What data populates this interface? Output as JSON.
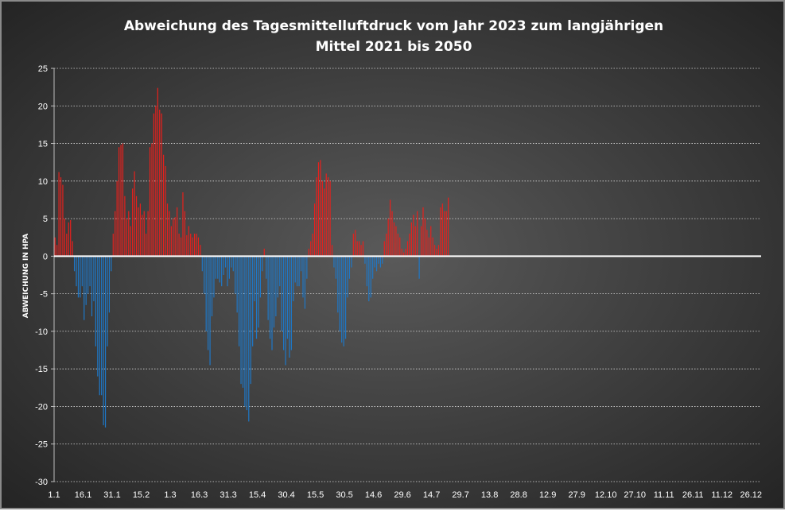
{
  "chart_data": {
    "type": "bar",
    "title_lines": [
      "Abweichung  des Tagesmittelluftdruck  vom Jahr 2023 zum langjährigen",
      "Mittel  2021 bis 2050"
    ],
    "ylabel": "ABWEICHUNG IN HPA",
    "xlabel": "",
    "ylim": [
      -30,
      25
    ],
    "y_ticks": [
      25,
      20,
      15,
      10,
      5,
      0,
      -5,
      -10,
      -15,
      -20,
      -25,
      -30
    ],
    "x_tick_labels": [
      "1.1",
      "16.1",
      "31.1",
      "15.2",
      "1.3",
      "16.3",
      "31.3",
      "15.4",
      "30.4",
      "15.5",
      "30.5",
      "14.6",
      "29.6",
      "14.7",
      "29.7",
      "13.8",
      "28.8",
      "12.9",
      "27.9",
      "12.10",
      "27.10",
      "11.11",
      "26.11",
      "11.12",
      "26.12"
    ],
    "days_in_year": 365,
    "gridlines": true,
    "positive_color": "#e8201c",
    "negative_color": "#1e78c8",
    "zero_line_color": "#ffffff",
    "values": [
      2.5,
      1.5,
      11.2,
      10.5,
      9.5,
      5.0,
      3.0,
      4.5,
      4.8,
      2.0,
      -2.0,
      -4.0,
      -5.5,
      -5.5,
      -4.0,
      -8.5,
      -6.5,
      -5.0,
      -4.0,
      -8.0,
      -6.0,
      -12.0,
      -16.0,
      -18.5,
      -18.5,
      -22.5,
      -22.8,
      -12.0,
      -7.5,
      -2.0,
      3.0,
      6.0,
      10.0,
      14.5,
      14.8,
      15.0,
      8.0,
      5.0,
      6.0,
      4.0,
      9.0,
      11.3,
      8.0,
      6.5,
      7.0,
      5.5,
      6.0,
      3.0,
      6.0,
      14.5,
      15.0,
      19.0,
      20.0,
      22.4,
      19.5,
      19.0,
      13.5,
      12.0,
      7.0,
      6.0,
      4.0,
      5.0,
      5.2,
      6.5,
      3.0,
      2.5,
      8.5,
      6.0,
      2.8,
      4.0,
      3.0,
      2.5,
      3.0,
      3.0,
      2.5,
      1.5,
      -2.0,
      -5.0,
      -10.0,
      -12.5,
      -14.5,
      -8.0,
      -5.5,
      -3.0,
      -3.0,
      -3.5,
      -4.0,
      -2.5,
      -1.5,
      -4.0,
      -3.0,
      -1.5,
      -2.0,
      -5.0,
      -7.5,
      -12.0,
      -17.0,
      -17.5,
      -20.0,
      -20.5,
      -22.0,
      -17.0,
      -12.0,
      -6.0,
      -11.0,
      -9.5,
      -5.5,
      -2.0,
      1.0,
      -3.0,
      -8.5,
      -11.0,
      -12.5,
      -9.5,
      -8.0,
      -5.5,
      -4.0,
      -10.0,
      -12.5,
      -14.5,
      -11.0,
      -13.5,
      -12.5,
      -6.0,
      -3.5,
      -4.0,
      -4.0,
      -2.0,
      -5.5,
      -7.0,
      -3.0,
      1.0,
      2.0,
      3.0,
      7.0,
      10.5,
      12.5,
      12.8,
      10.0,
      9.0,
      11.0,
      10.5,
      10.0,
      1.5,
      -1.5,
      -3.0,
      -7.5,
      -10.0,
      -11.5,
      -12.0,
      -11.0,
      -5.5,
      -3.0,
      -1.5,
      3.0,
      3.5,
      2.0,
      2.0,
      1.5,
      2.0,
      -1.0,
      -4.0,
      -6.0,
      -5.5,
      -3.0,
      -1.5,
      -2.0,
      -1.0,
      -1.5,
      -1.0,
      2.0,
      3.0,
      5.0,
      7.5,
      6.0,
      4.5,
      4.0,
      3.0,
      2.5,
      1.0,
      0.5,
      1.0,
      2.0,
      3.0,
      4.5,
      5.5,
      4.0,
      6.0,
      -3.0,
      4.0,
      6.5,
      5.0,
      3.5,
      2.5,
      4.0,
      2.5,
      1.5,
      1.0,
      1.5,
      6.5,
      7.0,
      6.0,
      6.0,
      7.8
    ]
  }
}
